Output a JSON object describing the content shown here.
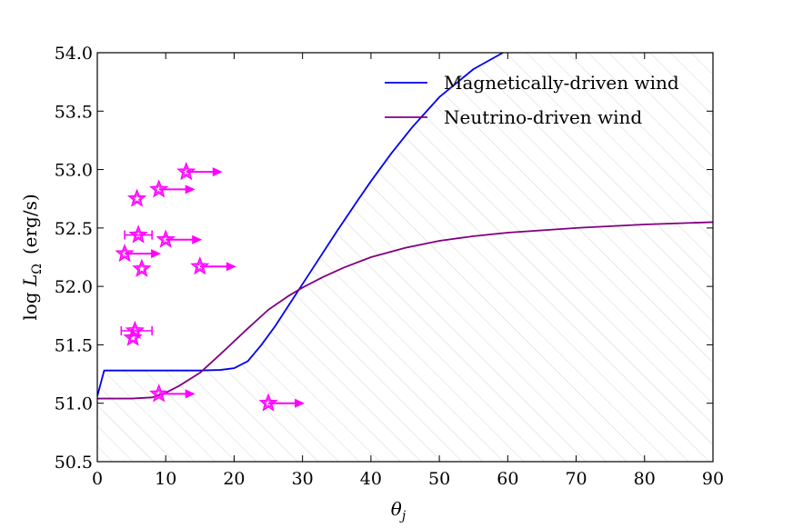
{
  "chart_data": {
    "type": "line",
    "title": "",
    "xlabel_main": "θ",
    "xlabel_sub": "j",
    "ylabel_prefix": "log ",
    "ylabel_var": "L",
    "ylabel_sub": "Ω",
    "ylabel_unit": "(erg/s)",
    "xlim": [
      0,
      90
    ],
    "ylim": [
      50.5,
      54.0
    ],
    "xticks": [
      0,
      10,
      20,
      30,
      40,
      50,
      60,
      70,
      80,
      90
    ],
    "yticks": [
      50.5,
      51.0,
      51.5,
      52.0,
      52.5,
      53.0,
      53.5,
      54.0
    ],
    "ytick_labels": [
      "50.5",
      "51.0",
      "51.5",
      "52.0",
      "52.5",
      "53.0",
      "53.5",
      "54.0"
    ],
    "grid": false,
    "legend_position": "top-right",
    "hatched_region": "below magnetically-driven curve",
    "series": [
      {
        "name": "Magnetically-driven wind",
        "color": "#0000ee",
        "x": [
          0,
          1,
          5,
          10,
          15,
          18,
          20,
          22,
          24,
          26,
          28,
          30,
          32,
          35,
          38,
          40,
          43,
          46,
          50,
          55,
          59.3
        ],
        "y": [
          51.06,
          51.28,
          51.28,
          51.28,
          51.28,
          51.285,
          51.3,
          51.36,
          51.5,
          51.66,
          51.84,
          52.02,
          52.2,
          52.47,
          52.73,
          52.9,
          53.14,
          53.36,
          53.62,
          53.86,
          54.0
        ]
      },
      {
        "name": "Neutrino-driven wind",
        "color": "#800080",
        "x": [
          0,
          5,
          8,
          10,
          12,
          15,
          18,
          20,
          22,
          25,
          28,
          30,
          33,
          36,
          40,
          45,
          50,
          55,
          60,
          70,
          80,
          90
        ],
        "y": [
          51.04,
          51.04,
          51.05,
          51.09,
          51.15,
          51.26,
          51.42,
          51.53,
          51.64,
          51.8,
          51.92,
          51.99,
          52.08,
          52.16,
          52.25,
          52.33,
          52.39,
          52.43,
          52.46,
          52.5,
          52.53,
          52.55
        ]
      }
    ],
    "markers": {
      "color": "#ff00ff",
      "shape": "star",
      "points": [
        {
          "x": 13.0,
          "y": 52.98,
          "arrow": true
        },
        {
          "x": 9.0,
          "y": 52.83,
          "arrow": true
        },
        {
          "x": 5.8,
          "y": 52.75,
          "arrow": false
        },
        {
          "x": 6.0,
          "y": 52.44,
          "arrow": false,
          "xerr": [
            4.0,
            8.0
          ]
        },
        {
          "x": 10.0,
          "y": 52.4,
          "arrow": true
        },
        {
          "x": 4.0,
          "y": 52.28,
          "arrow": true
        },
        {
          "x": 6.5,
          "y": 52.15,
          "arrow": false
        },
        {
          "x": 15.0,
          "y": 52.17,
          "arrow": true
        },
        {
          "x": 5.5,
          "y": 51.62,
          "arrow": false,
          "xerr": [
            3.5,
            8.0
          ]
        },
        {
          "x": 5.2,
          "y": 51.56,
          "arrow": false
        },
        {
          "x": 9.0,
          "y": 51.08,
          "arrow": true
        },
        {
          "x": 25.0,
          "y": 51.0,
          "arrow": true
        }
      ]
    }
  }
}
